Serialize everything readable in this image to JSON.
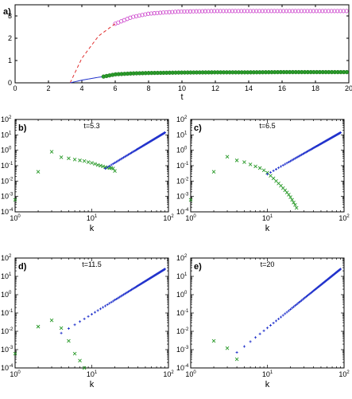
{
  "chart_data": [
    {
      "panel": "a)",
      "type": "line",
      "xlabel": "t",
      "ylabel": "",
      "xlim": [
        0,
        20
      ],
      "ylim": [
        0,
        3.5
      ],
      "x_ticks": [
        0,
        2,
        4,
        6,
        8,
        10,
        12,
        14,
        16,
        18,
        20
      ],
      "y_ticks": [
        0,
        1,
        2,
        3
      ],
      "grid": false,
      "series": [
        {
          "color": "#cc44cc",
          "style": "circles-open",
          "t_start": 3.3,
          "t_end": 20,
          "x": [
            3.3,
            4.0,
            5.0,
            6.0,
            7.0,
            8.0,
            9.0,
            10.0,
            12.0,
            14.0,
            16.0,
            18.0,
            20.0
          ],
          "values": [
            0.0,
            1.1,
            2.1,
            2.65,
            2.95,
            3.1,
            3.16,
            3.2,
            3.22,
            3.22,
            3.22,
            3.22,
            3.22
          ]
        },
        {
          "color": "#e03030",
          "style": "dashed",
          "t_start": 3.3,
          "t_end": 6.0,
          "x": [
            3.3,
            4.0,
            5.0,
            6.0
          ],
          "values": [
            0.0,
            1.1,
            2.1,
            2.65
          ]
        },
        {
          "color": "#2233cc",
          "style": "line",
          "t_start": 3.3,
          "t_end": 5.5,
          "x": [
            3.3,
            4.0,
            5.0,
            5.5
          ],
          "values": [
            0.0,
            0.12,
            0.25,
            0.3
          ]
        },
        {
          "color": "#2a9a2a",
          "style": "filled-dots",
          "t_start": 5.3,
          "t_end": 20,
          "x": [
            5.3,
            6.0,
            7.0,
            8.0,
            10.0,
            12.0,
            14.0,
            16.0,
            18.0,
            20.0
          ],
          "values": [
            0.28,
            0.38,
            0.42,
            0.44,
            0.46,
            0.47,
            0.47,
            0.48,
            0.48,
            0.48
          ]
        }
      ]
    },
    {
      "panel": "b)",
      "type": "scatter",
      "annotation": "t=5.3",
      "xlabel": "k",
      "xlim": [
        1,
        100
      ],
      "ylim": [
        0.0001,
        100
      ],
      "log_x": true,
      "log_y": true,
      "x_ticks": [
        "10^0",
        "10^1",
        "10^2"
      ],
      "y_ticks": [
        "10^-4",
        "10^-3",
        "10^-2",
        "10^-1",
        "10^0",
        "10^1",
        "10^2"
      ],
      "series": [
        {
          "marker": "x",
          "color": "#2a9a2a",
          "x": [
            1,
            2,
            3,
            4,
            5,
            6,
            7,
            8,
            9,
            10,
            11,
            12,
            13,
            14,
            15,
            16,
            17,
            18,
            19,
            20
          ],
          "values": [
            0.0006,
            0.04,
            0.8,
            0.35,
            0.3,
            0.25,
            0.22,
            0.2,
            0.17,
            0.15,
            0.13,
            0.11,
            0.1,
            0.09,
            0.08,
            0.075,
            0.07,
            0.07,
            0.065,
            0.045
          ]
        },
        {
          "marker": "+",
          "color": "#2233cc",
          "type": "power-law",
          "k_start": 15,
          "k_end": 90,
          "v_start": 0.065,
          "v_end": 14
        }
      ]
    },
    {
      "panel": "c)",
      "type": "scatter",
      "annotation": "t=6.5",
      "xlabel": "k",
      "xlim": [
        1,
        100
      ],
      "ylim": [
        0.0001,
        100
      ],
      "log_x": true,
      "log_y": true,
      "x_ticks": [
        "10^0",
        "10^1",
        "10^2"
      ],
      "y_ticks": [
        "10^-4",
        "10^-3",
        "10^-2",
        "10^-1",
        "10^0",
        "10^1",
        "10^2"
      ],
      "series": [
        {
          "marker": "x",
          "color": "#2a9a2a",
          "x": [
            1,
            2,
            3,
            4,
            5,
            6,
            7,
            8,
            9,
            10,
            11,
            12,
            13,
            14,
            15,
            16,
            17,
            18,
            19,
            20,
            21,
            22,
            23,
            24
          ],
          "values": [
            0.0006,
            0.04,
            0.38,
            0.22,
            0.17,
            0.12,
            0.09,
            0.07,
            0.05,
            0.035,
            0.022,
            0.015,
            0.01,
            0.007,
            0.005,
            0.0035,
            0.0025,
            0.0018,
            0.0013,
            0.0009,
            0.0006,
            0.0004,
            0.00028,
            0.00018
          ]
        },
        {
          "marker": "+",
          "color": "#2233cc",
          "type": "power-law",
          "k_start": 10,
          "k_end": 90,
          "v_start": 0.028,
          "v_end": 14
        }
      ]
    },
    {
      "panel": "d)",
      "type": "scatter",
      "annotation": "t=11.5",
      "xlabel": "k",
      "xlim": [
        1,
        100
      ],
      "ylim": [
        0.0001,
        100
      ],
      "log_x": true,
      "log_y": true,
      "x_ticks": [
        "10^0",
        "10^1",
        "10^2"
      ],
      "y_ticks": [
        "10^-4",
        "10^-3",
        "10^-2",
        "10^-1",
        "10^0",
        "10^1",
        "10^2"
      ],
      "series": [
        {
          "marker": "x",
          "color": "#2a9a2a",
          "x": [
            1,
            2,
            3,
            4,
            5,
            6,
            7,
            8
          ],
          "values": [
            0.0006,
            0.018,
            0.04,
            0.015,
            0.003,
            0.0006,
            0.00025,
            0.0001
          ]
        },
        {
          "marker": "+",
          "color": "#2233cc",
          "type": "power-law",
          "k_start": 4,
          "k_end": 90,
          "v_start": 0.008,
          "v_end": 25
        }
      ]
    },
    {
      "panel": "e)",
      "type": "scatter",
      "annotation": "t=20",
      "xlabel": "k",
      "xlim": [
        1,
        100
      ],
      "ylim": [
        0.0001,
        100
      ],
      "log_x": true,
      "log_y": true,
      "x_ticks": [
        "10^0",
        "10^1",
        "10^2"
      ],
      "y_ticks": [
        "10^-4",
        "10^-3",
        "10^-2",
        "10^-1",
        "10^0",
        "10^1",
        "10^2"
      ],
      "series": [
        {
          "marker": "x",
          "color": "#2a9a2a",
          "x": [
            2,
            3,
            4
          ],
          "values": [
            0.003,
            0.0012,
            0.0003
          ]
        },
        {
          "marker": "+",
          "color": "#2233cc",
          "type": "power-law",
          "k_start": 4,
          "k_end": 90,
          "v_start": 0.0007,
          "v_end": 25
        }
      ]
    }
  ]
}
